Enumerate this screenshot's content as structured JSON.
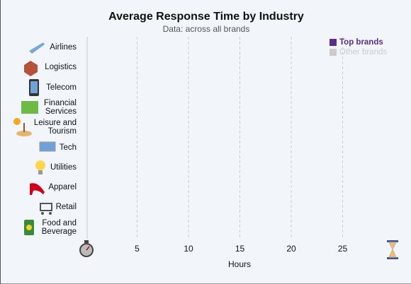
{
  "chart_data": {
    "type": "bar",
    "orientation": "horizontal",
    "title": "Average Response Time by Industry",
    "subtitle": "Data: across all brands",
    "x_label": "Hours",
    "categories": [
      "Airlines",
      "Logistics",
      "Telecom",
      "Financial Services",
      "Leisure and Tourism",
      "Tech",
      "Utilities",
      "Apparel",
      "Retail",
      "Food and Beverage"
    ],
    "series": [
      {
        "name": "Top brands",
        "color": "#5b2d8e",
        "values": [
          null,
          null,
          null,
          null,
          null,
          null,
          null,
          null,
          null,
          null
        ]
      },
      {
        "name": "Other brands",
        "color": "#cccccc",
        "values": [
          null,
          null,
          null,
          null,
          null,
          null,
          null,
          null,
          null,
          null
        ]
      }
    ],
    "xlim": [
      0,
      30
    ],
    "xticks": [
      5,
      10,
      15,
      20,
      25
    ],
    "grid": true,
    "legend": "top-right"
  }
}
